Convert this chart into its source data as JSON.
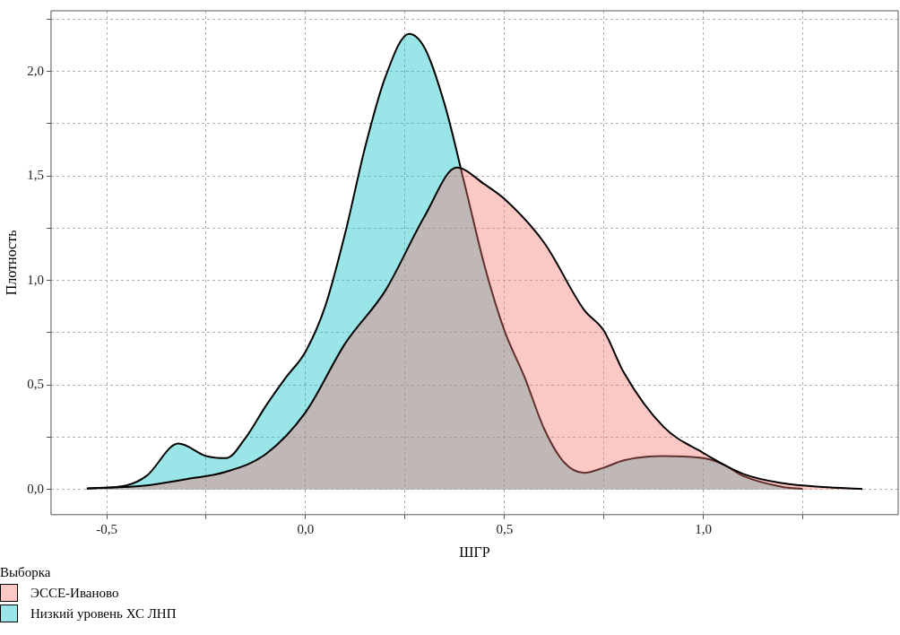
{
  "chart_data": {
    "type": "area",
    "xlabel": "ШГР",
    "ylabel": "Плотность",
    "legend_title": "Выборка",
    "legend": "bottom left",
    "grid": true,
    "xlim": [
      -0.64,
      1.49
    ],
    "ylim": [
      -0.12,
      2.29
    ],
    "xticks": [
      {
        "value": -0.5,
        "label": "-0,5"
      },
      {
        "value": -0.25,
        "label": null
      },
      {
        "value": 0,
        "label": "0,0"
      },
      {
        "value": 0.25,
        "label": null
      },
      {
        "value": 0.5,
        "label": "0,5"
      },
      {
        "value": 0.75,
        "label": null
      },
      {
        "value": 1,
        "label": "1,0"
      },
      {
        "value": 1.25,
        "label": null
      }
    ],
    "yticks": [
      {
        "value": 0,
        "label": "0,0"
      },
      {
        "value": 0.25,
        "label": null
      },
      {
        "value": 0.5,
        "label": "0,5"
      },
      {
        "value": 0.75,
        "label": null
      },
      {
        "value": 1,
        "label": "1,0"
      },
      {
        "value": 1.25,
        "label": null
      },
      {
        "value": 1.5,
        "label": "1,5"
      },
      {
        "value": 1.75,
        "label": null
      },
      {
        "value": 2,
        "label": "2,0"
      },
      {
        "value": 2.25,
        "label": null
      }
    ],
    "series": [
      {
        "name": "ЭССЕ-Иваново",
        "color": "#f8766d",
        "x": [
          -0.55,
          -0.4,
          -0.3,
          -0.2,
          -0.1,
          0,
          0.1,
          0.2,
          0.3,
          0.38,
          0.45,
          0.5,
          0.6,
          0.7,
          0.75,
          0.8,
          0.9,
          1,
          1.1,
          1.2,
          1.3,
          1.4
        ],
        "values": [
          0.005,
          0.02,
          0.05,
          0.085,
          0.17,
          0.37,
          0.7,
          0.95,
          1.31,
          1.54,
          1.46,
          1.39,
          1.18,
          0.86,
          0.76,
          0.56,
          0.3,
          0.175,
          0.075,
          0.03,
          0.012,
          0.003
        ]
      },
      {
        "name": "Низкий уровень ХС ЛНП",
        "color": "#00bfc4",
        "x": [
          -0.55,
          -0.45,
          -0.4,
          -0.32,
          -0.25,
          -0.2,
          -0.15,
          -0.1,
          -0.05,
          0,
          0.05,
          0.1,
          0.15,
          0.2,
          0.26,
          0.3,
          0.35,
          0.4,
          0.45,
          0.5,
          0.55,
          0.6,
          0.65,
          0.7,
          0.75,
          0.8,
          0.9,
          1,
          1.05,
          1.1,
          1.2,
          1.25
        ],
        "values": [
          0.005,
          0.02,
          0.065,
          0.22,
          0.16,
          0.15,
          0.25,
          0.4,
          0.535,
          0.66,
          0.88,
          1.23,
          1.64,
          1.97,
          2.18,
          2.11,
          1.84,
          1.46,
          1.07,
          0.76,
          0.54,
          0.29,
          0.13,
          0.08,
          0.105,
          0.14,
          0.16,
          0.15,
          0.12,
          0.065,
          0.012,
          0.003
        ]
      }
    ]
  }
}
